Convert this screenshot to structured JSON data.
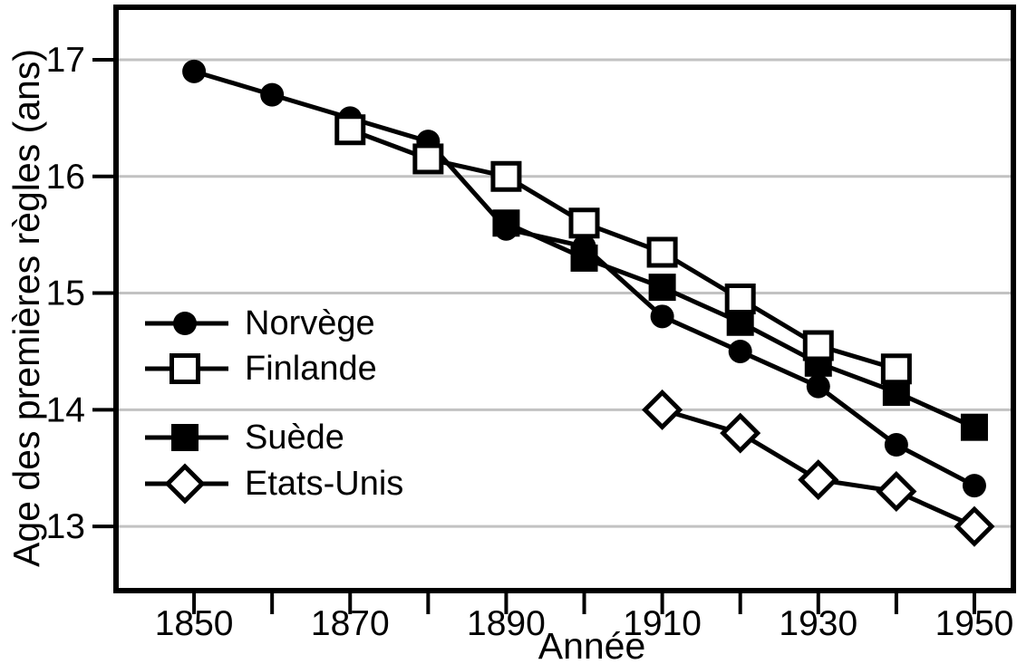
{
  "chart_data": {
    "type": "line",
    "title": "",
    "xlabel": "Année",
    "ylabel": "Age des premières règles (ans)",
    "xlim": [
      1840,
      1955
    ],
    "ylim": [
      12.45,
      17.45
    ],
    "grid": "horizontal",
    "grid_color": "#c2c2c2",
    "line_color": "#000000",
    "background_color": "#ffffff",
    "legend_position": "inside-middle-left",
    "draw_order": [
      "Norvège",
      "Suède",
      "Finlande",
      "Etats-Unis"
    ],
    "x_ticks": [
      {
        "year": 1850,
        "label": "1850"
      },
      {
        "year": 1860,
        "label": ""
      },
      {
        "year": 1870,
        "label": "1870"
      },
      {
        "year": 1880,
        "label": ""
      },
      {
        "year": 1890,
        "label": "1890"
      },
      {
        "year": 1900,
        "label": ""
      },
      {
        "year": 1910,
        "label": "1910"
      },
      {
        "year": 1920,
        "label": ""
      },
      {
        "year": 1930,
        "label": "1930"
      },
      {
        "year": 1940,
        "label": ""
      },
      {
        "year": 1950,
        "label": "1950"
      }
    ],
    "y_ticks": [
      {
        "value": 17,
        "label": "17"
      },
      {
        "value": 16,
        "label": "16"
      },
      {
        "value": 15,
        "label": "15"
      },
      {
        "value": 14,
        "label": "14"
      },
      {
        "value": 13,
        "label": "13"
      }
    ],
    "series": [
      {
        "name": "Norvège",
        "slug": "norvege",
        "marker": "filled-circle",
        "x": [
          1850,
          1860,
          1870,
          1880,
          1890,
          1900,
          1910,
          1920,
          1930,
          1940,
          1950
        ],
        "y": [
          16.9,
          16.7,
          16.5,
          16.3,
          15.55,
          15.4,
          14.8,
          14.5,
          14.2,
          13.7,
          13.35
        ]
      },
      {
        "name": "Finlande",
        "slug": "finlande",
        "marker": "open-square",
        "x": [
          1870,
          1880,
          1890,
          1900,
          1910,
          1920,
          1930,
          1940
        ],
        "y": [
          16.4,
          16.15,
          16.0,
          15.6,
          15.35,
          14.95,
          14.55,
          14.35
        ]
      },
      {
        "name": "Suède",
        "slug": "suede",
        "marker": "filled-square",
        "x": [
          1890,
          1900,
          1910,
          1920,
          1930,
          1940,
          1950
        ],
        "y": [
          15.6,
          15.3,
          15.05,
          14.75,
          14.4,
          14.15,
          13.85
        ]
      },
      {
        "name": "Etats-Unis",
        "slug": "etats-unis",
        "marker": "open-diamond",
        "x": [
          1910,
          1920,
          1930,
          1940,
          1950
        ],
        "y": [
          14.0,
          13.8,
          13.4,
          13.3,
          13.0
        ]
      }
    ]
  }
}
